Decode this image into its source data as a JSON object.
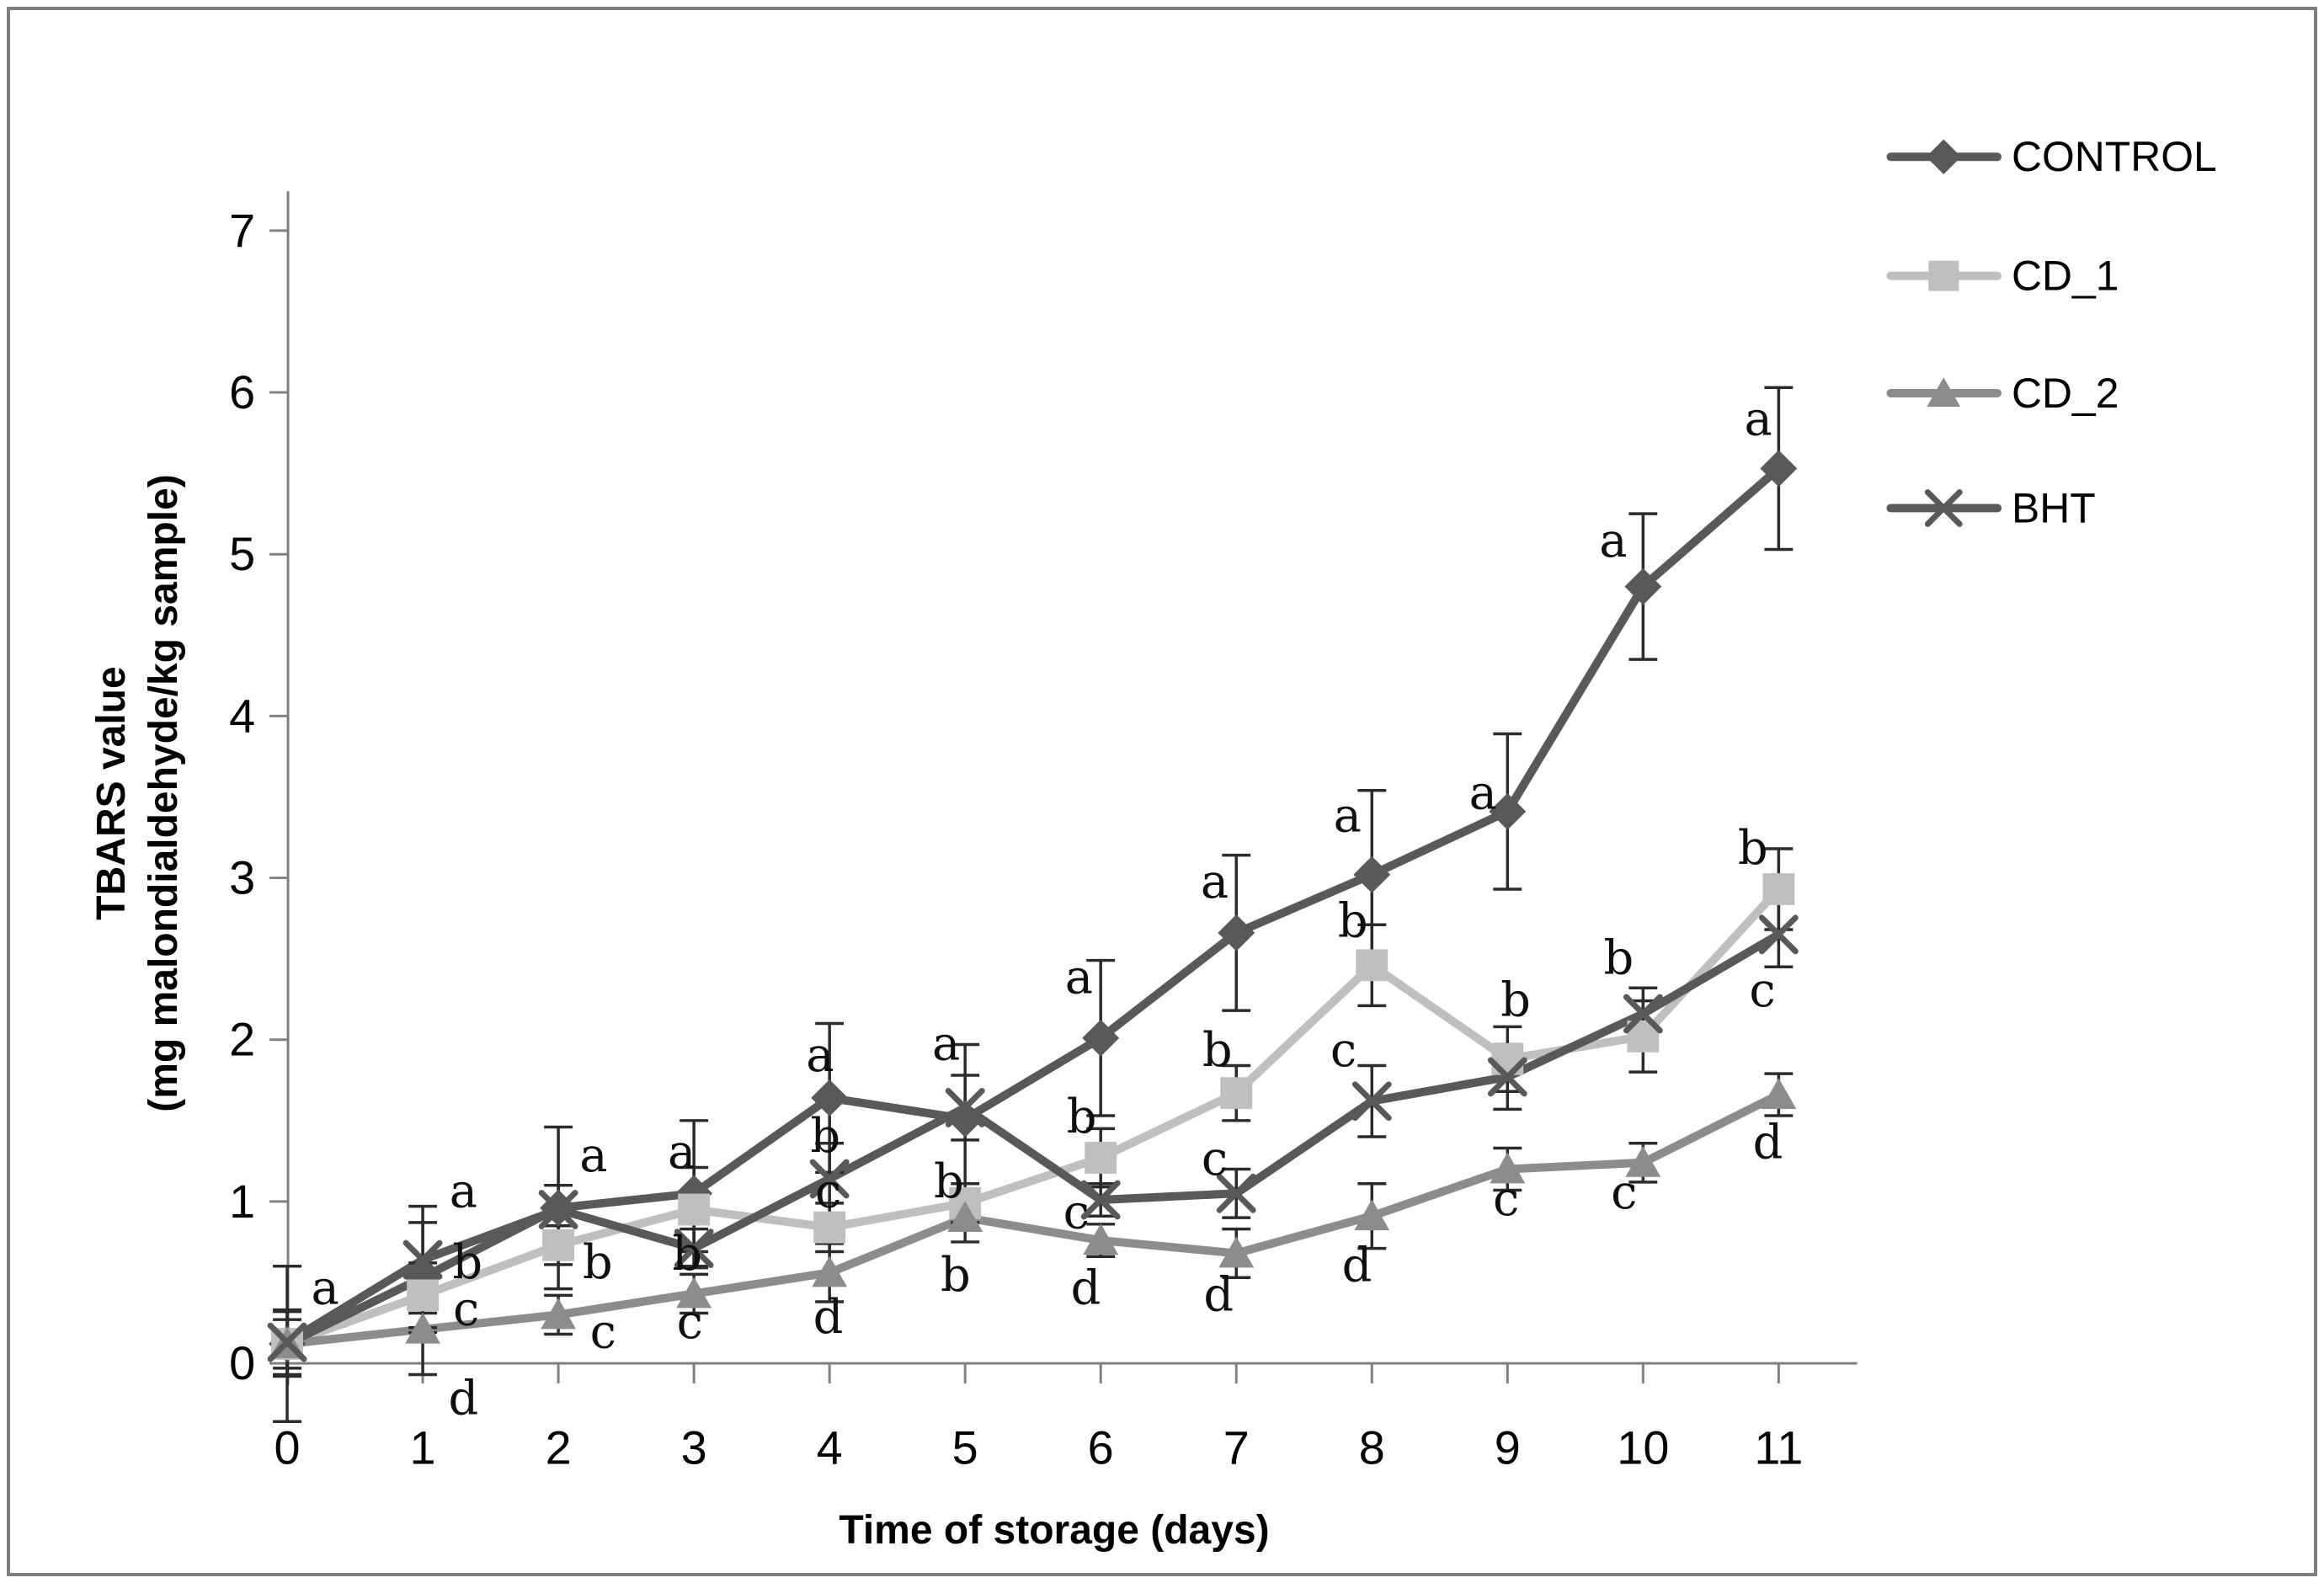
{
  "chart_data": {
    "type": "line",
    "title": "",
    "xlabel": "Time of storage (days)",
    "ylabel_line1": "TBARS value",
    "ylabel_line2": "(mg malondialdehyde/kg sample)",
    "x": [
      0,
      1,
      2,
      3,
      4,
      5,
      6,
      7,
      8,
      9,
      10,
      11
    ],
    "x_tick_labels": [
      "0",
      "1",
      "2",
      "3",
      "4",
      "5",
      "6",
      "7",
      "8",
      "9",
      "10",
      "11"
    ],
    "y_ticks": [
      0,
      1,
      2,
      3,
      4,
      5,
      6,
      7
    ],
    "y_tick_labels": [
      "0",
      "1",
      "2",
      "3",
      "4",
      "5",
      "6",
      "7"
    ],
    "xlim": [
      0,
      11
    ],
    "ylim": [
      0,
      7
    ],
    "grid": false,
    "legend_position": "top-right",
    "axis_color": "#808080",
    "error_bar_color": "#2b2b2b",
    "annotation_color": "#0f0f0f",
    "series": [
      {
        "name": "CONTROL",
        "marker": "diamond",
        "color": "#595959",
        "values": [
          0.12,
          0.53,
          0.96,
          1.05,
          1.64,
          1.51,
          2.01,
          2.66,
          3.02,
          3.41,
          4.8,
          5.53
        ],
        "errors": [
          0.48,
          0.34,
          0.5,
          0.45,
          0.46,
          0.46,
          0.48,
          0.48,
          0.52,
          0.48,
          0.45,
          0.5
        ]
      },
      {
        "name": "CD_1",
        "marker": "square",
        "color": "#bfbfbf",
        "values": [
          0.12,
          0.42,
          0.73,
          0.95,
          0.84,
          0.99,
          1.27,
          1.67,
          2.46,
          1.88,
          2.02,
          2.93
        ],
        "errors": [
          0.2,
          0.2,
          0.12,
          0.26,
          0.15,
          0.12,
          0.18,
          0.17,
          0.25,
          0.2,
          0.22,
          0.25
        ]
      },
      {
        "name": "CD_2",
        "marker": "triangle",
        "color": "#8c8c8c",
        "values": [
          0.12,
          0.21,
          0.3,
          0.43,
          0.56,
          0.9,
          0.76,
          0.68,
          0.91,
          1.2,
          1.24,
          1.66
        ],
        "errors": [
          0.15,
          0.28,
          0.12,
          0.12,
          0.18,
          0.15,
          0.1,
          0.15,
          0.2,
          0.13,
          0.12,
          0.13
        ]
      },
      {
        "name": "BHT",
        "marker": "x",
        "color": "#595959",
        "values": [
          0.13,
          0.64,
          0.95,
          0.71,
          1.14,
          1.58,
          1.01,
          1.05,
          1.62,
          1.77,
          2.16,
          2.65
        ],
        "errors": [
          0.2,
          0.33,
          0.15,
          0.12,
          0.22,
          0.2,
          0.1,
          0.15,
          0.22,
          0.2,
          0.16,
          0.2
        ]
      }
    ],
    "annotations": [
      {
        "d": 0.28,
        "v": 0.46,
        "t": "a"
      },
      {
        "d": 1.3,
        "v": 1.06,
        "t": "a"
      },
      {
        "d": 1.33,
        "v": 0.62,
        "t": "b"
      },
      {
        "d": 1.32,
        "v": 0.33,
        "t": "c"
      },
      {
        "d": 1.3,
        "v": -0.22,
        "t": "d"
      },
      {
        "d": 2.26,
        "v": 1.28,
        "t": "a"
      },
      {
        "d": 2.29,
        "v": 0.62,
        "t": "b"
      },
      {
        "d": 2.33,
        "v": 0.19,
        "t": "c"
      },
      {
        "d": 2.91,
        "v": 1.3,
        "t": "a"
      },
      {
        "d": 2.95,
        "v": 0.67,
        "t": "b"
      },
      {
        "d": 2.97,
        "v": 0.25,
        "t": "c"
      },
      {
        "d": 3.93,
        "v": 1.9,
        "t": "a"
      },
      {
        "d": 3.97,
        "v": 1.4,
        "t": "b"
      },
      {
        "d": 3.99,
        "v": 1.06,
        "t": "c"
      },
      {
        "d": 3.99,
        "v": 0.28,
        "t": "d"
      },
      {
        "d": 4.86,
        "v": 1.97,
        "t": "a"
      },
      {
        "d": 4.88,
        "v": 1.12,
        "t": "b"
      },
      {
        "d": 4.93,
        "v": 0.54,
        "t": "b"
      },
      {
        "d": 5.84,
        "v": 2.38,
        "t": "a"
      },
      {
        "d": 5.86,
        "v": 1.52,
        "t": "b"
      },
      {
        "d": 5.82,
        "v": 0.93,
        "t": "c"
      },
      {
        "d": 5.89,
        "v": 0.46,
        "t": "d"
      },
      {
        "d": 6.84,
        "v": 2.97,
        "t": "a"
      },
      {
        "d": 6.86,
        "v": 1.93,
        "t": "b"
      },
      {
        "d": 6.84,
        "v": 1.26,
        "t": "c"
      },
      {
        "d": 6.87,
        "v": 0.42,
        "t": "d"
      },
      {
        "d": 7.82,
        "v": 3.38,
        "t": "a"
      },
      {
        "d": 7.86,
        "v": 2.73,
        "t": "b"
      },
      {
        "d": 7.79,
        "v": 1.93,
        "t": "c"
      },
      {
        "d": 7.89,
        "v": 0.6,
        "t": "d"
      },
      {
        "d": 8.82,
        "v": 3.52,
        "t": "a"
      },
      {
        "d": 9.06,
        "v": 2.24,
        "t": "b"
      },
      {
        "d": 8.99,
        "v": 1.01,
        "t": "c"
      },
      {
        "d": 9.78,
        "v": 5.08,
        "t": "a"
      },
      {
        "d": 9.82,
        "v": 2.5,
        "t": "b"
      },
      {
        "d": 9.86,
        "v": 1.05,
        "t": "c"
      },
      {
        "d": 10.85,
        "v": 5.83,
        "t": "a"
      },
      {
        "d": 10.81,
        "v": 3.18,
        "t": "b"
      },
      {
        "d": 10.88,
        "v": 2.3,
        "t": "c"
      },
      {
        "d": 10.92,
        "v": 1.36,
        "t": "d"
      }
    ]
  }
}
